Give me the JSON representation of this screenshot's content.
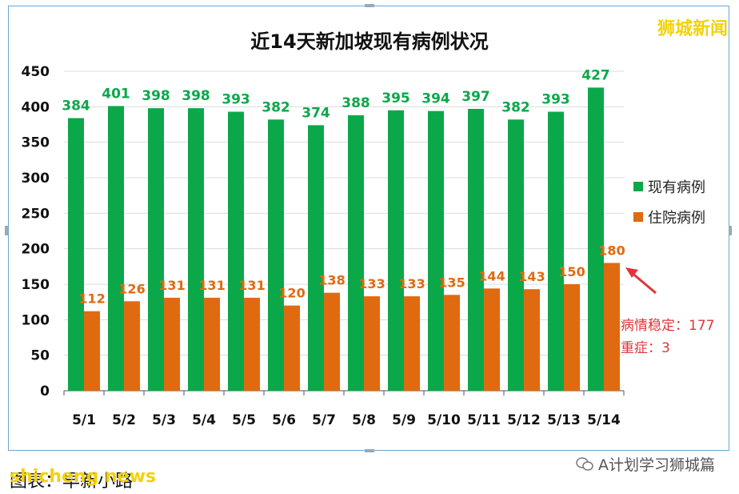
{
  "brand_label": "狮城新闻",
  "caption": {
    "cn": "图表：早新小路",
    "en": "shicheng news"
  },
  "watermark": "A计划学习狮城篇",
  "annotation": {
    "line1": "病情稳定：177",
    "line2": "重症：3"
  },
  "colors": {
    "series1": "#0ba84a",
    "series2": "#e06a10",
    "annotation": "#e0343a",
    "brand": "#f2d20a"
  },
  "chart_data": {
    "type": "bar",
    "title": "近14天新加坡现有病例状况",
    "categories": [
      "5/1",
      "5/2",
      "5/3",
      "5/4",
      "5/5",
      "5/6",
      "5/7",
      "5/8",
      "5/9",
      "5/10",
      "5/11",
      "5/12",
      "5/13",
      "5/14"
    ],
    "series": [
      {
        "name": "现有病例",
        "values": [
          384,
          401,
          398,
          398,
          393,
          382,
          374,
          388,
          395,
          394,
          397,
          382,
          393,
          427
        ]
      },
      {
        "name": "住院病例",
        "values": [
          112,
          126,
          131,
          131,
          131,
          120,
          138,
          133,
          133,
          135,
          144,
          143,
          150,
          180
        ]
      }
    ],
    "ylim": [
      0,
      450
    ],
    "yticks": [
      0,
      50,
      100,
      150,
      200,
      250,
      300,
      350,
      400,
      450
    ],
    "grid": true,
    "legend": "right"
  }
}
